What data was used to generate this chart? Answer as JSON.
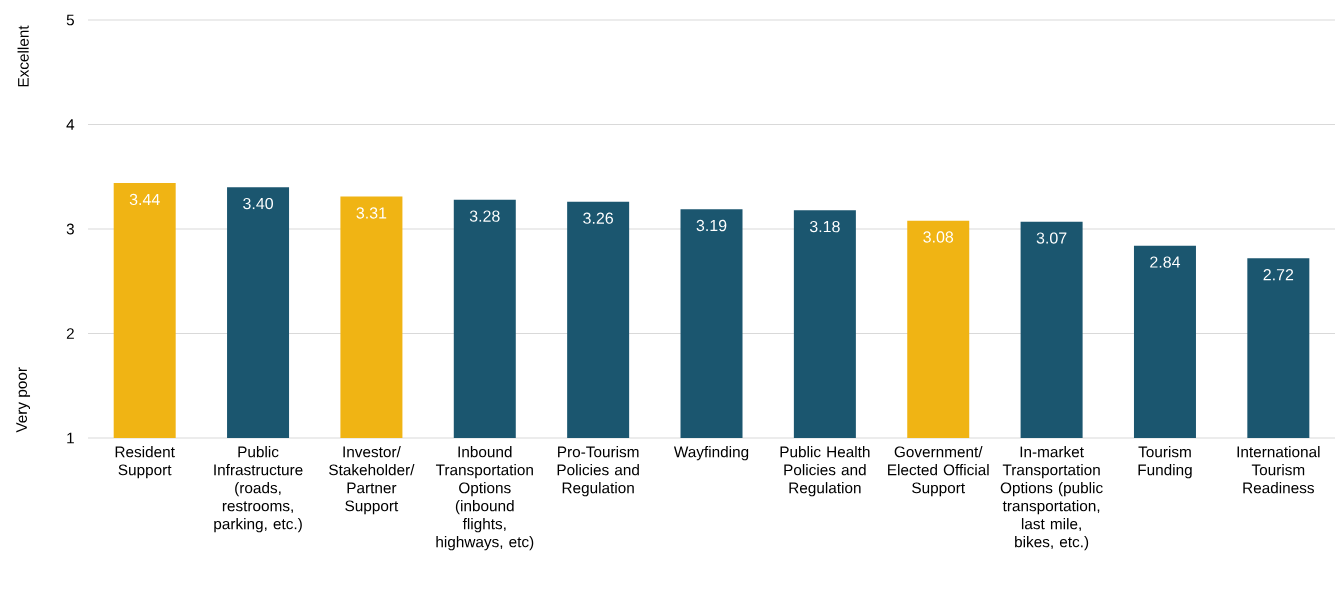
{
  "chart_data": {
    "type": "bar",
    "categories": [
      "Resident Support",
      "Public Infrastructure (roads, restrooms, parking, etc.)",
      "Investor/ Stakeholder/ Partner Support",
      "Inbound Transportation Options (inbound flights, highways, etc)",
      "Pro-Tourism Policies and Regulation",
      "Wayfinding",
      "Public Health Policies and Regulation",
      "Government/ Elected Official Support",
      "In-market Transportation Options (public transportation, last mile, bikes, etc.)",
      "Tourism Funding",
      "International Tourism Readiness"
    ],
    "values": [
      3.44,
      3.4,
      3.31,
      3.28,
      3.26,
      3.19,
      3.18,
      3.08,
      3.07,
      2.84,
      2.72
    ],
    "colors": [
      "#f0b414",
      "#1b566f",
      "#f0b414",
      "#1b566f",
      "#1b566f",
      "#1b566f",
      "#1b566f",
      "#f0b414",
      "#1b566f",
      "#1b566f",
      "#1b566f"
    ],
    "ylim": [
      1,
      5
    ],
    "yticks": [
      1,
      2,
      3,
      4,
      5
    ],
    "value_labels": [
      "3.44",
      "3.40",
      "3.31",
      "3.28",
      "3.26",
      "3.19",
      "3.18",
      "3.08",
      "3.07",
      "2.84",
      "2.72"
    ],
    "grid": "y",
    "annotations": [
      "Excellent",
      "Very poor"
    ]
  }
}
